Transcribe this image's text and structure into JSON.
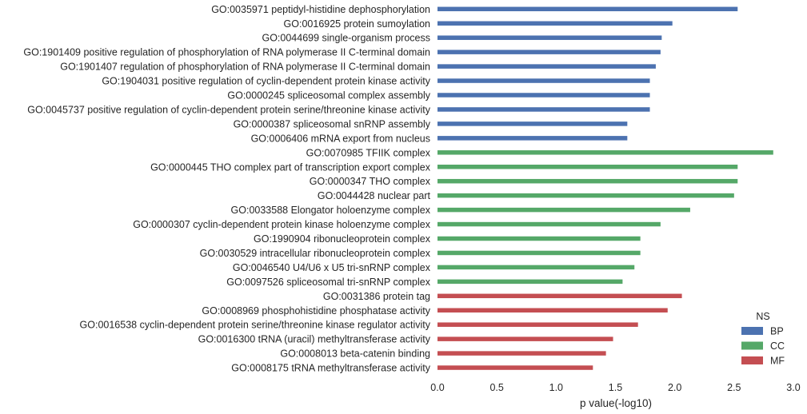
{
  "chart_data": {
    "type": "bar",
    "orientation": "horizontal",
    "xlabel": "p value(-log10)",
    "ylabel": "",
    "xlim": [
      0.0,
      3.0
    ],
    "xticks": [
      "0.0",
      "0.5",
      "1.0",
      "1.5",
      "2.0",
      "2.5",
      "3.0"
    ],
    "grid": false,
    "legend": {
      "title": "NS",
      "placement": "bottom-right",
      "entries": [
        {
          "name": "BP",
          "color": "#4c72b0"
        },
        {
          "name": "CC",
          "color": "#55a868"
        },
        {
          "name": "MF",
          "color": "#c44e52"
        }
      ]
    },
    "bars": [
      {
        "label": "GO:0035971 peptidyl-histidine dephosphorylation",
        "value": 2.53,
        "group": "BP"
      },
      {
        "label": "GO:0016925 protein sumoylation",
        "value": 1.98,
        "group": "BP"
      },
      {
        "label": "GO:0044699 single-organism process",
        "value": 1.89,
        "group": "BP"
      },
      {
        "label": "GO:1901409 positive regulation of phosphorylation of RNA polymerase II C-terminal domain",
        "value": 1.88,
        "group": "BP"
      },
      {
        "label": "GO:1901407 regulation of phosphorylation of RNA polymerase II C-terminal domain",
        "value": 1.84,
        "group": "BP"
      },
      {
        "label": "GO:1904031 positive regulation of cyclin-dependent protein kinase activity",
        "value": 1.79,
        "group": "BP"
      },
      {
        "label": "GO:0000245 spliceosomal complex assembly",
        "value": 1.79,
        "group": "BP"
      },
      {
        "label": "GO:0045737 positive regulation of cyclin-dependent protein serine/threonine kinase activity",
        "value": 1.79,
        "group": "BP"
      },
      {
        "label": "GO:0000387 spliceosomal snRNP assembly",
        "value": 1.6,
        "group": "BP"
      },
      {
        "label": "GO:0006406 mRNA export from nucleus",
        "value": 1.6,
        "group": "BP"
      },
      {
        "label": "GO:0070985 TFIIK complex",
        "value": 2.83,
        "group": "CC"
      },
      {
        "label": "GO:0000445 THO complex part of transcription export complex",
        "value": 2.53,
        "group": "CC"
      },
      {
        "label": "GO:0000347 THO complex",
        "value": 2.53,
        "group": "CC"
      },
      {
        "label": "GO:0044428 nuclear part",
        "value": 2.5,
        "group": "CC"
      },
      {
        "label": "GO:0033588 Elongator holoenzyme complex",
        "value": 2.13,
        "group": "CC"
      },
      {
        "label": "GO:0000307 cyclin-dependent protein kinase holoenzyme complex",
        "value": 1.88,
        "group": "CC"
      },
      {
        "label": "GO:1990904 ribonucleoprotein complex",
        "value": 1.71,
        "group": "CC"
      },
      {
        "label": "GO:0030529 intracellular ribonucleoprotein complex",
        "value": 1.71,
        "group": "CC"
      },
      {
        "label": "GO:0046540 U4/U6 x U5 tri-snRNP complex",
        "value": 1.66,
        "group": "CC"
      },
      {
        "label": "GO:0097526 spliceosomal tri-snRNP complex",
        "value": 1.56,
        "group": "CC"
      },
      {
        "label": "GO:0031386 protein tag",
        "value": 2.06,
        "group": "MF"
      },
      {
        "label": "GO:0008969 phosphohistidine phosphatase activity",
        "value": 1.94,
        "group": "MF"
      },
      {
        "label": "GO:0016538 cyclin-dependent protein serine/threonine kinase regulator activity",
        "value": 1.69,
        "group": "MF"
      },
      {
        "label": "GO:0016300 tRNA (uracil) methyltransferase activity",
        "value": 1.48,
        "group": "MF"
      },
      {
        "label": "GO:0008013 beta-catenin binding",
        "value": 1.42,
        "group": "MF"
      },
      {
        "label": "GO:0008175 tRNA methyltransferase activity",
        "value": 1.31,
        "group": "MF"
      }
    ]
  }
}
